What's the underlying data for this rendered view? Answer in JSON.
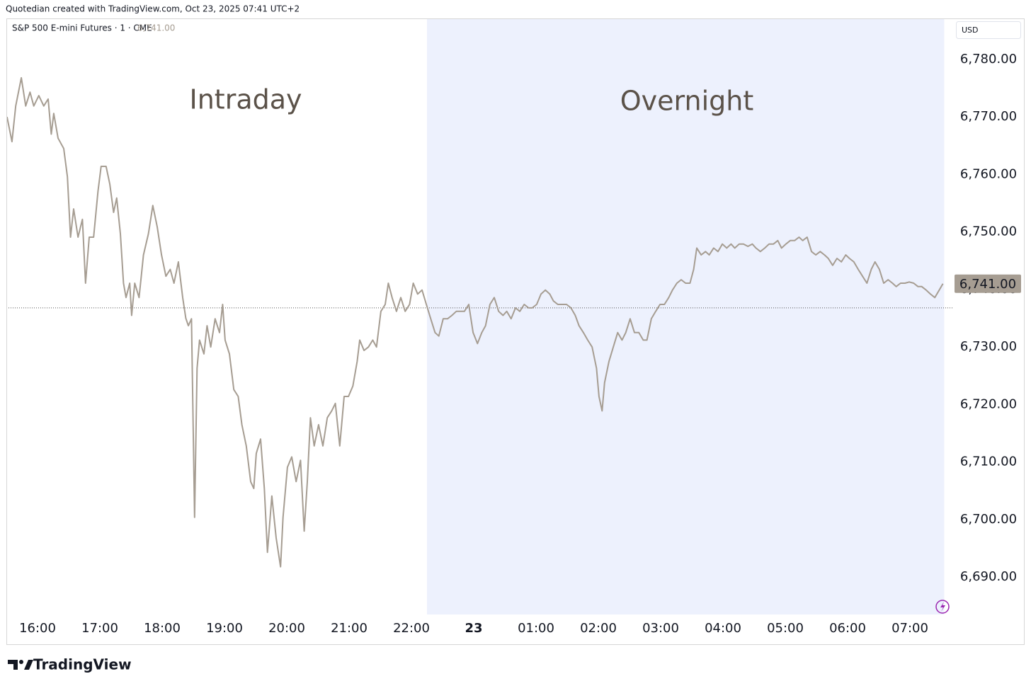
{
  "header": {
    "text": "Quotedian created with TradingView.com, Oct 23, 2025 07:41 UTC+2"
  },
  "brand": "TradingView",
  "chart_data": {
    "type": "line",
    "title": "S&P 500 E-mini Futures · 1 · CME",
    "currency": "USD",
    "color": "#a69d92",
    "annotations": [
      "Intraday",
      "Overnight"
    ],
    "shade_from": 22.25,
    "shade_color": "#edf1fd",
    "reference_line": 6736.8,
    "last_price": {
      "value": 6741,
      "label": "6,741.00"
    },
    "grid": false,
    "xlim": [
      15.5,
      30.55
    ],
    "xticks": [
      {
        "value": 16,
        "label": "16:00"
      },
      {
        "value": 17,
        "label": "17:00"
      },
      {
        "value": 18,
        "label": "18:00"
      },
      {
        "value": 19,
        "label": "19:00"
      },
      {
        "value": 20,
        "label": "20:00"
      },
      {
        "value": 21,
        "label": "21:00"
      },
      {
        "value": 22,
        "label": "22:00"
      },
      {
        "value": 23,
        "label": "23"
      },
      {
        "value": 24,
        "label": "01:00"
      },
      {
        "value": 25,
        "label": "02:00"
      },
      {
        "value": 26,
        "label": "03:00"
      },
      {
        "value": 27,
        "label": "04:00"
      },
      {
        "value": 28,
        "label": "05:00"
      },
      {
        "value": 29,
        "label": "06:00"
      },
      {
        "value": 30,
        "label": "07:00"
      }
    ],
    "ylim": [
      6683.5,
      6787
    ],
    "yticks": [
      {
        "value": 6690,
        "label": "6,690.00"
      },
      {
        "value": 6700,
        "label": "6,700.00"
      },
      {
        "value": 6710,
        "label": "6,710.00"
      },
      {
        "value": 6720,
        "label": "6,720.00"
      },
      {
        "value": 6730,
        "label": "6,730.00"
      },
      {
        "value": 6740,
        "label": "6,740.00"
      },
      {
        "value": 6750,
        "label": "6,750.00"
      },
      {
        "value": 6760,
        "label": "6,760.00"
      },
      {
        "value": 6770,
        "label": "6,770.00"
      },
      {
        "value": 6780,
        "label": "6,780.00"
      }
    ],
    "x": [
      15.51,
      15.59,
      15.65,
      15.74,
      15.81,
      15.88,
      15.94,
      16.02,
      16.1,
      16.17,
      16.22,
      16.26,
      16.33,
      16.42,
      16.48,
      16.53,
      16.58,
      16.65,
      16.72,
      16.77,
      16.83,
      16.9,
      16.97,
      17.02,
      17.1,
      17.16,
      17.22,
      17.27,
      17.33,
      17.38,
      17.42,
      17.48,
      17.51,
      17.56,
      17.63,
      17.7,
      17.78,
      17.85,
      17.92,
      17.99,
      18.06,
      18.13,
      18.19,
      18.26,
      18.33,
      18.38,
      18.42,
      18.47,
      18.52,
      18.56,
      18.6,
      18.67,
      18.72,
      18.78,
      18.85,
      18.92,
      18.97,
      19.01,
      19.08,
      19.15,
      19.22,
      19.28,
      19.35,
      19.42,
      19.47,
      19.51,
      19.58,
      19.64,
      19.69,
      19.76,
      19.83,
      19.9,
      19.94,
      20.01,
      20.08,
      20.15,
      20.22,
      20.28,
      20.33,
      20.38,
      20.44,
      20.51,
      20.58,
      20.65,
      20.72,
      20.78,
      20.85,
      20.92,
      20.99,
      21.06,
      21.13,
      21.17,
      21.24,
      21.31,
      21.38,
      21.44,
      21.51,
      21.58,
      21.63,
      21.69,
      21.76,
      21.83,
      21.9,
      21.97,
      22.03,
      22.1,
      22.17,
      22.24,
      22.31,
      22.38,
      22.44,
      22.51,
      22.58,
      22.65,
      22.72,
      22.78,
      22.85,
      22.92,
      22.99,
      23.06,
      23.13,
      23.19,
      23.26,
      23.33,
      23.4,
      23.47,
      23.53,
      23.6,
      23.67,
      23.74,
      23.81,
      23.88,
      23.94,
      24.01,
      24.08,
      24.15,
      24.22,
      24.28,
      24.35,
      24.42,
      24.49,
      24.56,
      24.63,
      24.69,
      24.76,
      24.83,
      24.9,
      24.97,
      25.01,
      25.06,
      25.1,
      25.17,
      25.24,
      25.31,
      25.38,
      25.44,
      25.51,
      25.58,
      25.65,
      25.72,
      25.78,
      25.85,
      25.92,
      25.99,
      26.06,
      26.13,
      26.19,
      26.26,
      26.33,
      26.4,
      26.47,
      26.53,
      26.58,
      26.65,
      26.72,
      26.78,
      26.85,
      26.92,
      26.99,
      27.06,
      27.13,
      27.19,
      27.26,
      27.33,
      27.4,
      27.47,
      27.53,
      27.6,
      27.67,
      27.74,
      27.81,
      27.88,
      27.94,
      28.01,
      28.08,
      28.15,
      28.22,
      28.28,
      28.35,
      28.42,
      28.49,
      28.56,
      28.63,
      28.69,
      28.76,
      28.83,
      28.9,
      28.97,
      29.03,
      29.1,
      29.17,
      29.24,
      29.31,
      29.38,
      29.44,
      29.51,
      29.58,
      29.65,
      29.72,
      29.78,
      29.85,
      29.92,
      29.99,
      30.06,
      30.13,
      30.19,
      30.26,
      30.33,
      30.4,
      30.47,
      30.53
    ],
    "values": [
      6770.0,
      6765.7,
      6771.9,
      6776.8,
      6771.9,
      6774.3,
      6771.9,
      6773.7,
      6771.9,
      6773.1,
      6767.0,
      6770.6,
      6766.3,
      6764.5,
      6759.6,
      6749.1,
      6754.0,
      6749.1,
      6752.2,
      6741.1,
      6749.1,
      6749.1,
      6757.1,
      6761.4,
      6761.4,
      6758.3,
      6753.4,
      6755.9,
      6749.7,
      6741.1,
      6738.6,
      6741.1,
      6735.5,
      6741.1,
      6738.6,
      6746.0,
      6749.7,
      6754.6,
      6750.9,
      6746.0,
      6742.3,
      6743.5,
      6741.1,
      6744.8,
      6738.6,
      6735.0,
      6733.7,
      6734.9,
      6700.4,
      6726.3,
      6731.2,
      6728.8,
      6733.7,
      6730.0,
      6734.9,
      6732.5,
      6737.4,
      6731.2,
      6728.8,
      6722.6,
      6721.4,
      6716.5,
      6712.8,
      6706.6,
      6705.4,
      6711.5,
      6714.0,
      6705.4,
      6694.3,
      6704.1,
      6696.8,
      6691.8,
      6700.4,
      6709.1,
      6710.9,
      6706.6,
      6710.3,
      6698.0,
      6706.6,
      6717.7,
      6712.8,
      6716.5,
      6712.8,
      6717.7,
      6718.9,
      6720.2,
      6712.8,
      6721.4,
      6721.4,
      6723.2,
      6727.5,
      6731.2,
      6729.4,
      6730.0,
      6731.2,
      6730.0,
      6736.2,
      6737.4,
      6741.1,
      6738.6,
      6736.2,
      6738.6,
      6736.2,
      6737.4,
      6741.1,
      6739.2,
      6739.9,
      6737.4,
      6734.9,
      6732.5,
      6731.9,
      6734.9,
      6734.9,
      6735.5,
      6736.2,
      6736.2,
      6736.2,
      6737.4,
      6732.5,
      6730.6,
      6732.5,
      6733.7,
      6737.4,
      6738.6,
      6736.2,
      6735.5,
      6736.2,
      6734.9,
      6736.8,
      6736.2,
      6737.4,
      6736.8,
      6736.8,
      6737.4,
      6739.2,
      6739.9,
      6739.2,
      6738.0,
      6737.4,
      6737.4,
      6737.4,
      6736.8,
      6735.5,
      6733.7,
      6732.5,
      6731.2,
      6730.0,
      6726.3,
      6721.4,
      6718.9,
      6723.8,
      6727.5,
      6730.0,
      6732.5,
      6731.2,
      6732.5,
      6734.9,
      6732.5,
      6732.5,
      6731.2,
      6731.2,
      6734.9,
      6736.2,
      6737.4,
      6737.4,
      6738.6,
      6739.9,
      6741.1,
      6741.7,
      6741.1,
      6741.1,
      6743.5,
      6747.2,
      6746.0,
      6746.6,
      6746.0,
      6747.2,
      6746.6,
      6747.9,
      6747.2,
      6747.9,
      6747.2,
      6747.9,
      6747.9,
      6747.5,
      6747.9,
      6747.2,
      6746.6,
      6747.2,
      6747.9,
      6747.9,
      6748.5,
      6747.2,
      6747.9,
      6748.5,
      6748.5,
      6749.1,
      6748.5,
      6749.1,
      6746.6,
      6746.0,
      6746.6,
      6746.0,
      6745.4,
      6744.2,
      6745.4,
      6744.8,
      6746.0,
      6745.4,
      6744.8,
      6743.5,
      6742.3,
      6741.1,
      6743.5,
      6744.8,
      6743.5,
      6741.1,
      6741.7,
      6741.1,
      6740.5,
      6741.1,
      6741.1,
      6741.3,
      6741.1,
      6740.5,
      6740.5,
      6739.9,
      6739.2,
      6738.6,
      6739.9,
      6741.0
    ]
  }
}
